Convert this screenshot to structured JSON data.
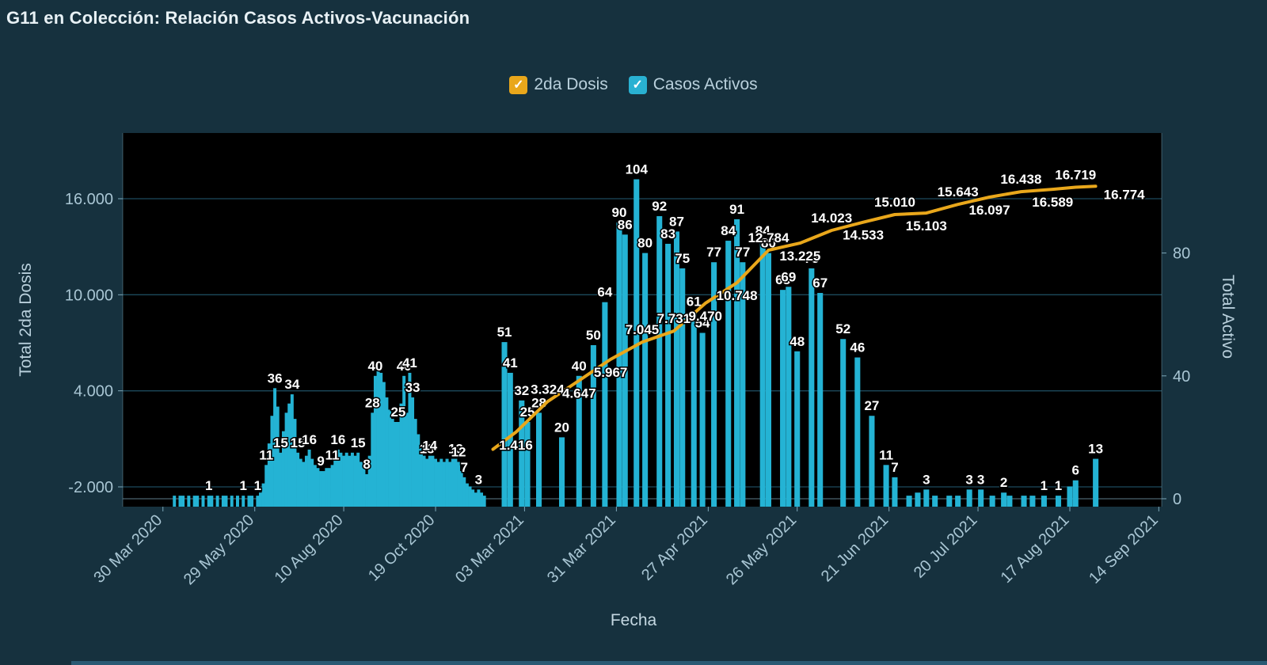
{
  "title": "G11 en Colección: Relación Casos Activos-Vacunación",
  "legend": [
    {
      "label": "2da Dosis",
      "color": "#e9a71b",
      "check": "✓"
    },
    {
      "label": "Casos Activos",
      "color": "#29b1d2",
      "check": "✓"
    }
  ],
  "colors": {
    "background": "#16313e",
    "plot_background": "#000000",
    "bar": "#24b3d4",
    "line": "#e9a71b",
    "grid": "#1d4a5c",
    "axis": "#7ea7b8",
    "tick_text": "#a9c6d4",
    "label_text": "#ffffff"
  },
  "chart_data": {
    "type": "bar+line",
    "title": "G11 en Colección: Relación Casos Activos-Vacunación",
    "xlabel": "Fecha",
    "x_ticks": [
      {
        "i": 14,
        "label": "30 Mar 2020"
      },
      {
        "i": 46,
        "label": "29 May 2020"
      },
      {
        "i": 77,
        "label": "10 Aug 2020"
      },
      {
        "i": 109,
        "label": "19 Oct 2020"
      },
      {
        "i": 140,
        "label": "03 Mar 2021"
      },
      {
        "i": 172,
        "label": "31 Mar 2021"
      },
      {
        "i": 204,
        "label": "27 Apr 2021"
      },
      {
        "i": 235,
        "label": "26 May 2021"
      },
      {
        "i": 267,
        "label": "21 Jun 2021"
      },
      {
        "i": 298,
        "label": "20 Jul 2021"
      },
      {
        "i": 330,
        "label": "17 Aug 2021"
      },
      {
        "i": 361,
        "label": "14 Sep 2021"
      }
    ],
    "slots": 362,
    "y_left": {
      "label": "Total 2da Dosis",
      "min": -2000,
      "max": 17800,
      "ticks": [
        {
          "v": 16000,
          "label": "16.000"
        },
        {
          "v": 10000,
          "label": "10.000"
        },
        {
          "v": 4000,
          "label": "4.000"
        },
        {
          "v": -2000,
          "label": "-2.000"
        }
      ]
    },
    "y_right": {
      "label": "Total Activo",
      "min": 0,
      "max": 119,
      "ticks": [
        {
          "v": 80,
          "label": "80"
        },
        {
          "v": 40,
          "label": "40"
        },
        {
          "v": 0,
          "label": "0"
        }
      ]
    },
    "series": [
      {
        "name": "Casos Activos",
        "type": "bar",
        "axis": "right",
        "points": [
          [
            18,
            1,
            "",
            1
          ],
          [
            20,
            1,
            "",
            1
          ],
          [
            21,
            1,
            "",
            1
          ],
          [
            23,
            1,
            "",
            1
          ],
          [
            25,
            1,
            "",
            1
          ],
          [
            26,
            1,
            "",
            1
          ],
          [
            28,
            1,
            "",
            1
          ],
          [
            30,
            1,
            "1",
            1
          ],
          [
            31,
            1,
            "",
            1
          ],
          [
            33,
            1,
            "",
            1
          ],
          [
            35,
            1,
            "",
            1
          ],
          [
            36,
            1,
            "",
            1
          ],
          [
            38,
            1,
            "",
            1
          ],
          [
            40,
            1,
            "",
            1
          ],
          [
            42,
            1,
            "1",
            1
          ],
          [
            44,
            1,
            "",
            1
          ],
          [
            45,
            1,
            "",
            1
          ],
          [
            47,
            1,
            "1",
            1
          ],
          [
            48,
            2,
            "",
            1
          ],
          [
            49,
            5,
            "",
            1
          ],
          [
            50,
            11,
            "11",
            1
          ],
          [
            51,
            18,
            "",
            1
          ],
          [
            52,
            27,
            "",
            1
          ],
          [
            53,
            36,
            "36",
            1
          ],
          [
            54,
            30,
            "",
            1
          ],
          [
            55,
            15,
            "15",
            1
          ],
          [
            56,
            22,
            "",
            1
          ],
          [
            57,
            28,
            "",
            1
          ],
          [
            58,
            31,
            "",
            1
          ],
          [
            59,
            34,
            "34",
            1
          ],
          [
            60,
            26,
            "",
            1
          ],
          [
            61,
            15,
            "15",
            1
          ],
          [
            62,
            13,
            "",
            1
          ],
          [
            63,
            12,
            "",
            1
          ],
          [
            64,
            14,
            "",
            1
          ],
          [
            65,
            16,
            "16",
            1
          ],
          [
            66,
            13,
            "",
            1
          ],
          [
            67,
            11,
            "",
            1
          ],
          [
            68,
            10,
            "",
            1
          ],
          [
            69,
            9,
            "9",
            1
          ],
          [
            70,
            9,
            "",
            1
          ],
          [
            71,
            10,
            "",
            1
          ],
          [
            72,
            10,
            "",
            1
          ],
          [
            73,
            11,
            "11",
            1
          ],
          [
            74,
            13,
            "",
            1
          ],
          [
            75,
            16,
            "16",
            1
          ],
          [
            76,
            15,
            "",
            1
          ],
          [
            77,
            14,
            "",
            1
          ],
          [
            78,
            15,
            "",
            1
          ],
          [
            79,
            14,
            "",
            1
          ],
          [
            80,
            15,
            "",
            1
          ],
          [
            81,
            14,
            "",
            1
          ],
          [
            82,
            15,
            "15",
            1
          ],
          [
            83,
            12,
            "",
            1
          ],
          [
            84,
            10,
            "",
            1
          ],
          [
            85,
            8,
            "8",
            1
          ],
          [
            86,
            14,
            "",
            1
          ],
          [
            87,
            28,
            "28",
            1
          ],
          [
            88,
            40,
            "40",
            1
          ],
          [
            89,
            43,
            "",
            1
          ],
          [
            90,
            41,
            "",
            1
          ],
          [
            91,
            38,
            "",
            1
          ],
          [
            92,
            33,
            "",
            1
          ],
          [
            93,
            29,
            "",
            1
          ],
          [
            94,
            26,
            "",
            1
          ],
          [
            95,
            25,
            "",
            1
          ],
          [
            96,
            25,
            "25",
            1
          ],
          [
            97,
            31,
            "",
            1
          ],
          [
            98,
            40,
            "40",
            1
          ],
          [
            99,
            28,
            "",
            1
          ],
          [
            100,
            41,
            "41",
            1
          ],
          [
            101,
            33,
            "33",
            1
          ],
          [
            102,
            26,
            "",
            1
          ],
          [
            103,
            21,
            "",
            1
          ],
          [
            104,
            17,
            "",
            1
          ],
          [
            105,
            14,
            "",
            1
          ],
          [
            106,
            13,
            "13",
            1
          ],
          [
            107,
            14,
            "14",
            1
          ],
          [
            108,
            14,
            "",
            1
          ],
          [
            109,
            13,
            "",
            1
          ],
          [
            110,
            12,
            "",
            1
          ],
          [
            111,
            13,
            "",
            1
          ],
          [
            112,
            12,
            "",
            1
          ],
          [
            113,
            13,
            "",
            1
          ],
          [
            114,
            12,
            "",
            1
          ],
          [
            115,
            13,
            "",
            1
          ],
          [
            116,
            13,
            "13",
            1
          ],
          [
            117,
            12,
            "12",
            1
          ],
          [
            118,
            9,
            "",
            1
          ],
          [
            119,
            7,
            "7",
            1
          ],
          [
            120,
            5,
            "",
            1
          ],
          [
            121,
            4,
            "",
            1
          ],
          [
            122,
            3,
            "",
            1
          ],
          [
            123,
            2,
            "",
            1
          ],
          [
            124,
            3,
            "3",
            1
          ],
          [
            125,
            2,
            "",
            1
          ],
          [
            126,
            1,
            "",
            1
          ],
          [
            133,
            51,
            "51",
            2
          ],
          [
            135,
            41,
            "41",
            2
          ],
          [
            139,
            32,
            "32",
            2
          ],
          [
            141,
            25,
            "25",
            2
          ],
          [
            145,
            28,
            "28",
            2
          ],
          [
            153,
            20,
            "20",
            2
          ],
          [
            159,
            40,
            "40",
            2
          ],
          [
            164,
            50,
            "50",
            2
          ],
          [
            168,
            64,
            "64",
            2
          ],
          [
            173,
            90,
            "90",
            2
          ],
          [
            175,
            86,
            "86",
            2
          ],
          [
            179,
            104,
            "104",
            2
          ],
          [
            182,
            80,
            "80",
            2
          ],
          [
            187,
            92,
            "92",
            2
          ],
          [
            190,
            83,
            "83",
            2
          ],
          [
            193,
            87,
            "87",
            2
          ],
          [
            195,
            75,
            "75",
            2
          ],
          [
            199,
            61,
            "61",
            2
          ],
          [
            202,
            54,
            "54",
            2
          ],
          [
            206,
            77,
            "77",
            2
          ],
          [
            211,
            84,
            "84",
            2
          ],
          [
            214,
            91,
            "91",
            2
          ],
          [
            216,
            77,
            "77",
            2
          ],
          [
            223,
            84,
            "84",
            2
          ],
          [
            225,
            80,
            "80",
            2
          ],
          [
            230,
            68,
            "68",
            2
          ],
          [
            232,
            69,
            "69",
            2
          ],
          [
            235,
            48,
            "48",
            2
          ],
          [
            240,
            75,
            "75",
            2
          ],
          [
            243,
            67,
            "67",
            2
          ],
          [
            251,
            52,
            "52",
            2
          ],
          [
            256,
            46,
            "46",
            2
          ],
          [
            261,
            27,
            "27",
            2
          ],
          [
            266,
            11,
            "11",
            2
          ],
          [
            269,
            7,
            "7",
            2
          ],
          [
            274,
            1,
            "",
            2
          ],
          [
            277,
            2,
            "",
            2
          ],
          [
            280,
            3,
            "3",
            2
          ],
          [
            283,
            1,
            "",
            2
          ],
          [
            288,
            1,
            "",
            2
          ],
          [
            291,
            1,
            "",
            2
          ],
          [
            295,
            3,
            "3",
            2
          ],
          [
            299,
            3,
            "3",
            2
          ],
          [
            303,
            1,
            "",
            2
          ],
          [
            307,
            2,
            "2",
            2
          ],
          [
            309,
            1,
            "",
            2
          ],
          [
            314,
            1,
            "",
            2
          ],
          [
            317,
            1,
            "",
            2
          ],
          [
            321,
            1,
            "1",
            2
          ],
          [
            326,
            1,
            "1",
            2
          ],
          [
            330,
            4,
            "",
            2
          ],
          [
            332,
            6,
            "6",
            2
          ],
          [
            339,
            13,
            "13",
            2
          ]
        ]
      },
      {
        "name": "2da Dosis",
        "type": "line",
        "axis": "left",
        "points": [
          [
            129,
            350,
            "",
            ""
          ],
          [
            137,
            1416,
            "1.416",
            "b"
          ],
          [
            148,
            3324,
            "3.324",
            "a"
          ],
          [
            159,
            4647,
            "4.647",
            "b"
          ],
          [
            170,
            5967,
            "5.967",
            "b"
          ],
          [
            181,
            7045,
            "7.045",
            "a"
          ],
          [
            192,
            7731,
            "7.731",
            "a"
          ],
          [
            203,
            9470,
            "9.470",
            "b"
          ],
          [
            214,
            10748,
            "10.748",
            "b"
          ],
          [
            225,
            12784,
            "12.784",
            "a"
          ],
          [
            236,
            13225,
            "13.225",
            "b"
          ],
          [
            247,
            14023,
            "14.023",
            "a"
          ],
          [
            258,
            14533,
            "14.533",
            "b"
          ],
          [
            269,
            15010,
            "15.010",
            "a"
          ],
          [
            280,
            15103,
            "15.103",
            "b"
          ],
          [
            291,
            15643,
            "15.643",
            "a"
          ],
          [
            302,
            16097,
            "16.097",
            "b"
          ],
          [
            313,
            16438,
            "16.438",
            "a"
          ],
          [
            324,
            16589,
            "16.589",
            "b"
          ],
          [
            332,
            16719,
            "16.719",
            "a"
          ],
          [
            339,
            16774,
            "16.774",
            "r"
          ]
        ]
      }
    ]
  }
}
